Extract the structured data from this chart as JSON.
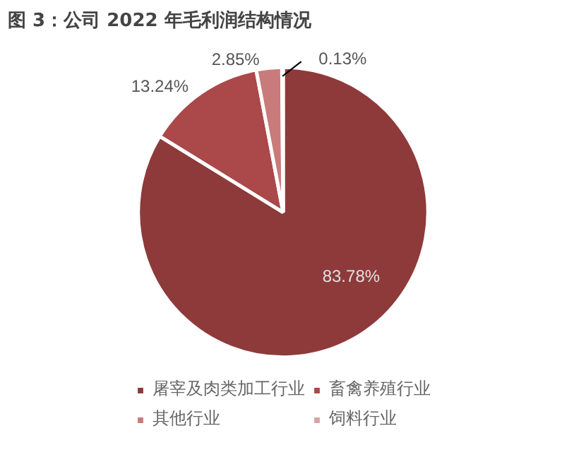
{
  "chart_data": {
    "type": "pie",
    "title": "图 3：公司 2022 年毛利润结构情况",
    "categories": [
      "屠宰及肉类加工行业",
      "畜禽养殖行业",
      "其他行业",
      "饲料行业"
    ],
    "values": [
      83.78,
      13.24,
      2.85,
      0.13
    ],
    "colors": [
      "#8e3a3a",
      "#aa484a",
      "#c97a7a",
      "#d9a3a3"
    ],
    "value_labels": [
      "83.78%",
      "13.24%",
      "2.85%",
      "0.13%"
    ],
    "legend": "bottom"
  }
}
